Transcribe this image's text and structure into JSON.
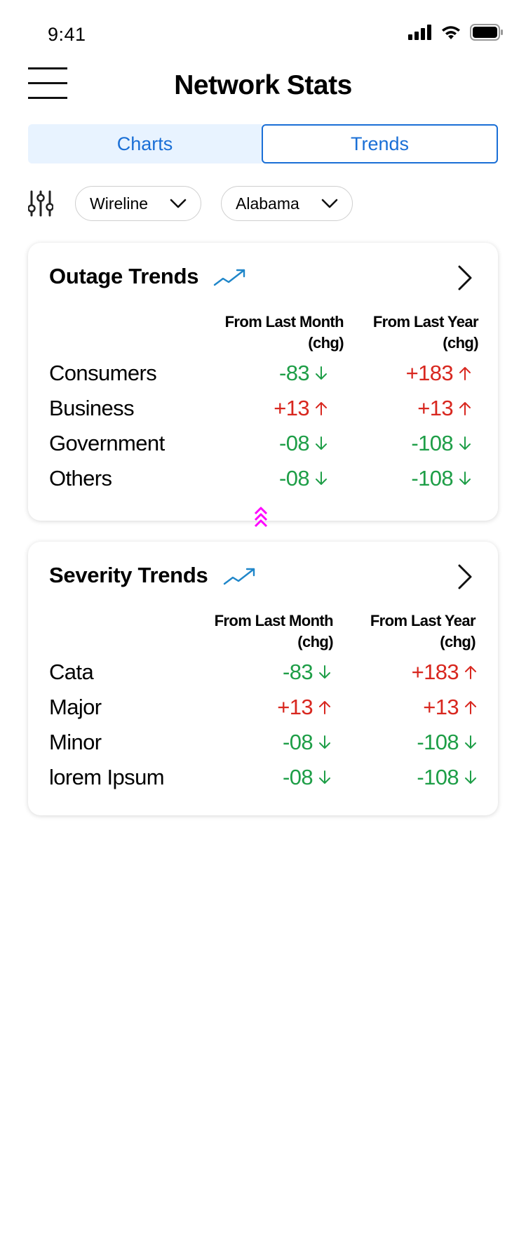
{
  "status_bar": {
    "time": "9:41",
    "icons": [
      "cellular-signal-icon",
      "wifi-icon",
      "battery-icon"
    ]
  },
  "header": {
    "title": "Network Stats",
    "menu_icon": "hamburger-menu-icon"
  },
  "tabs": [
    {
      "label": "Charts",
      "selected": false
    },
    {
      "label": "Trends",
      "selected": true
    }
  ],
  "filters": {
    "icon": "sliders-filter-icon",
    "network": "Wireline",
    "state": "Alabama"
  },
  "outage_trends": {
    "title": "Outage Trends",
    "col_month_line1": "From Last Month",
    "col_month_line2": "(chg)",
    "col_year_line1": "From Last Year",
    "col_year_line2": "(chg)",
    "rows": [
      {
        "label": "Consumers",
        "month": "-83",
        "month_dir": "down",
        "year": "+183",
        "year_dir": "up"
      },
      {
        "label": "Business",
        "month": "+13",
        "month_dir": "up",
        "year": "+13",
        "year_dir": "up"
      },
      {
        "label": "Government",
        "month": "-08",
        "month_dir": "down",
        "year": "-108",
        "year_dir": "down"
      },
      {
        "label": "Others",
        "month": "-08",
        "month_dir": "down",
        "year": "-108",
        "year_dir": "down"
      }
    ]
  },
  "severity_trends": {
    "title": "Severity Trends",
    "col_month_line1": "From Last Month",
    "col_month_line2": "(chg)",
    "col_year_line1": "From Last Year",
    "col_year_line2": "(chg)",
    "rows": [
      {
        "label": "Cata",
        "month": "-83",
        "month_dir": "down",
        "year": "+183",
        "year_dir": "up"
      },
      {
        "label": "Major",
        "month": "+13",
        "month_dir": "up",
        "year": "+13",
        "year_dir": "up"
      },
      {
        "label": "Minor",
        "month": "-08",
        "month_dir": "down",
        "year": "-108",
        "year_dir": "down"
      },
      {
        "label": "lorem Ipsum",
        "month": "-08",
        "month_dir": "down",
        "year": "-108",
        "year_dir": "down"
      }
    ]
  },
  "colors": {
    "accent": "#1a6fd6",
    "positive_down": "#1e9e47",
    "negative_up": "#d8271f",
    "handle": "#ff00ff"
  }
}
